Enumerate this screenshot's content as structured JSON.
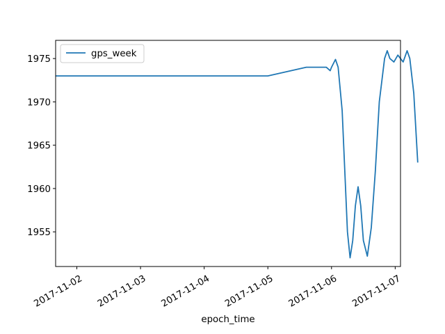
{
  "chart_data": {
    "type": "line",
    "xlabel": "epoch_time",
    "ylabel": "",
    "title": "",
    "grid": false,
    "legend_position": "top-left",
    "xlim": [
      "2017-11-01T16:00",
      "2017-11-07T02:00"
    ],
    "ylim": [
      1951,
      1977.1
    ],
    "x_ticks": [
      "2017-11-02",
      "2017-11-03",
      "2017-11-04",
      "2017-11-05",
      "2017-11-06",
      "2017-11-07"
    ],
    "y_ticks": [
      1955,
      1960,
      1965,
      1970,
      1975
    ],
    "series": [
      {
        "name": "gps_week",
        "color": "#1f77b4",
        "points": [
          [
            "2017-11-01T16:00",
            1973
          ],
          [
            "2017-11-02T12:00",
            1973
          ],
          [
            "2017-11-03T12:00",
            1973
          ],
          [
            "2017-11-04T12:00",
            1973
          ],
          [
            "2017-11-05T00:00",
            1973
          ],
          [
            "2017-11-05T14:30",
            1974
          ],
          [
            "2017-11-05T22:00",
            1974
          ],
          [
            "2017-11-05T23:30",
            1973.6
          ],
          [
            "2017-11-06T00:00",
            1974
          ],
          [
            "2017-11-06T01:30",
            1974.9
          ],
          [
            "2017-11-06T02:30",
            1974
          ],
          [
            "2017-11-06T04:00",
            1969
          ],
          [
            "2017-11-06T06:00",
            1955
          ],
          [
            "2017-11-06T07:00",
            1952
          ],
          [
            "2017-11-06T08:00",
            1954
          ],
          [
            "2017-11-06T09:00",
            1958
          ],
          [
            "2017-11-06T10:00",
            1960.2
          ],
          [
            "2017-11-06T11:00",
            1958
          ],
          [
            "2017-11-06T12:00",
            1954
          ],
          [
            "2017-11-06T13:30",
            1952.2
          ],
          [
            "2017-11-06T15:00",
            1955.5
          ],
          [
            "2017-11-06T16:30",
            1962
          ],
          [
            "2017-11-06T18:00",
            1970
          ],
          [
            "2017-11-06T20:00",
            1975
          ],
          [
            "2017-11-06T21:00",
            1975.9
          ],
          [
            "2017-11-06T22:00",
            1975
          ],
          [
            "2017-11-06T23:30",
            1974.6
          ],
          [
            "2017-11-07T01:00",
            1975.4
          ],
          [
            "2017-11-07T03:00",
            1974.6
          ],
          [
            "2017-11-07T04:30",
            1975.9
          ],
          [
            "2017-11-07T05:30",
            1975
          ],
          [
            "2017-11-07T07:00",
            1971
          ],
          [
            "2017-11-07T08:30",
            1963
          ]
        ]
      }
    ]
  }
}
